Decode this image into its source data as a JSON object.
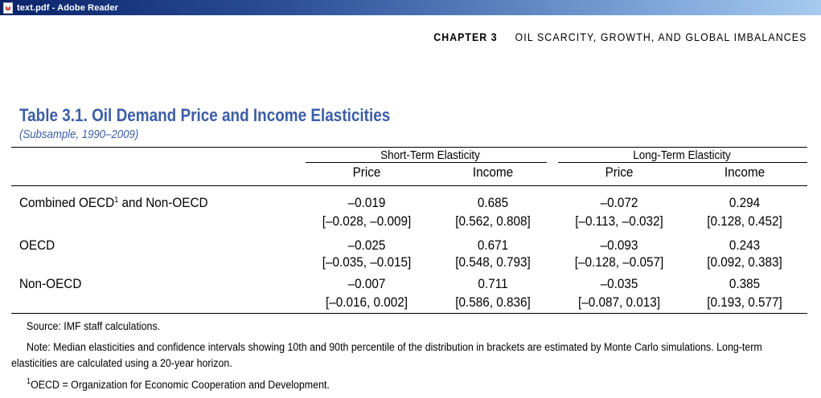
{
  "window": {
    "title": "text.pdf - Adobe Reader"
  },
  "running_header": {
    "chapter": "CHAPTER 3",
    "title": "OIL SCARCITY, GROWTH, AND GLOBAL IMBALANCES"
  },
  "table": {
    "title": "Table 3.1. Oil Demand Price and Income Elasticities",
    "subtitle": "(Subsample, 1990–2009)",
    "group_headers": [
      "Short-Term Elasticity",
      "Long-Term Elasticity"
    ],
    "column_headers": [
      "Price",
      "Income",
      "Price",
      "Income"
    ],
    "rows": [
      {
        "label": "Combined OECD",
        "label_sup": "1",
        "label_suffix": " and Non-OECD",
        "values": [
          "–0.019",
          "0.685",
          "–0.072",
          "0.294"
        ],
        "intervals": [
          "[–0.028, –0.009]",
          "[0.562, 0.808]",
          "[–0.113, –0.032]",
          "[0.128, 0.452]"
        ]
      },
      {
        "label": "OECD",
        "values": [
          "–0.025",
          "0.671",
          "–0.093",
          "0.243"
        ],
        "intervals": [
          "[–0.035, –0.015]",
          "[0.548, 0.793]",
          "[–0.128, –0.057]",
          "[0.092, 0.383]"
        ]
      },
      {
        "label": "Non-OECD",
        "values": [
          "–0.007",
          "0.711",
          "–0.035",
          "0.385"
        ],
        "intervals": [
          "[–0.016, 0.002]",
          "[0.586, 0.836]",
          "[–0.087, 0.013]",
          "[0.193, 0.577]"
        ]
      }
    ]
  },
  "footnotes": {
    "source": "Source: IMF staff calculations.",
    "note_line1": "Note: Median elasticities and confidence intervals showing 10th and 90th percentile of the distribution in brackets are estimated by Monte Carlo simulations. Long-term",
    "note_line2": "elasticities are calculated using a 20-year horizon.",
    "oecd_sup": "1",
    "oecd": "OECD = Organization for Economic Cooperation and Development."
  },
  "colors": {
    "title_blue": "#3b5ea6",
    "titlebar": "#0a246a"
  }
}
